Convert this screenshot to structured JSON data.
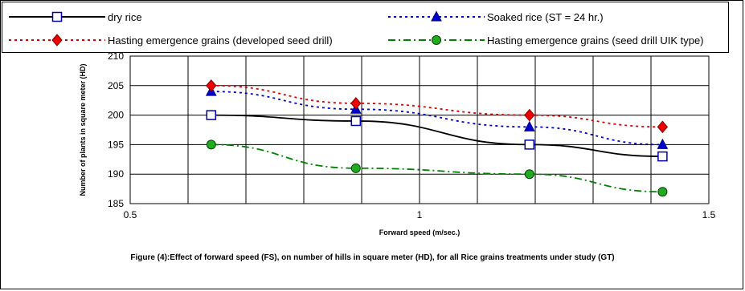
{
  "chart_data": {
    "type": "line",
    "xlabel": "Forward speed (m/sec.)",
    "ylabel": "Number of plants in square meter (HD)",
    "xlim": [
      0.5,
      1.5
    ],
    "ylim": [
      185,
      210
    ],
    "xticks": [
      "0.5",
      "1",
      "1.5"
    ],
    "yticks": [
      "185",
      "190",
      "195",
      "200",
      "205",
      "210"
    ],
    "grid": true,
    "legend_position": "top",
    "x": [
      0.64,
      0.89,
      1.19,
      1.42
    ],
    "series": [
      {
        "name": "dry rice",
        "values": [
          200,
          199,
          195,
          193
        ],
        "color": "#000000",
        "dash": "solid",
        "marker": "square"
      },
      {
        "name": "Soaked rice (ST = 24 hr.)",
        "values": [
          204,
          201,
          198,
          195
        ],
        "color": "#0000cc",
        "dash": "dot",
        "marker": "triangle"
      },
      {
        "name": "Hasting emergence grains (developed seed drill)",
        "values": [
          205,
          202,
          200,
          198
        ],
        "color": "#dd0000",
        "dash": "dot",
        "marker": "diamond"
      },
      {
        "name": "Hasting emergence grains (seed drill UIK type)",
        "values": [
          195,
          191,
          190,
          187
        ],
        "color": "#008000",
        "dash": "dashdot",
        "marker": "circle"
      }
    ]
  },
  "caption": "Figure (4):Effect of forward speed (FS), on number of hills in square meter (HD), for all Rice grains treatments under study (GT)"
}
